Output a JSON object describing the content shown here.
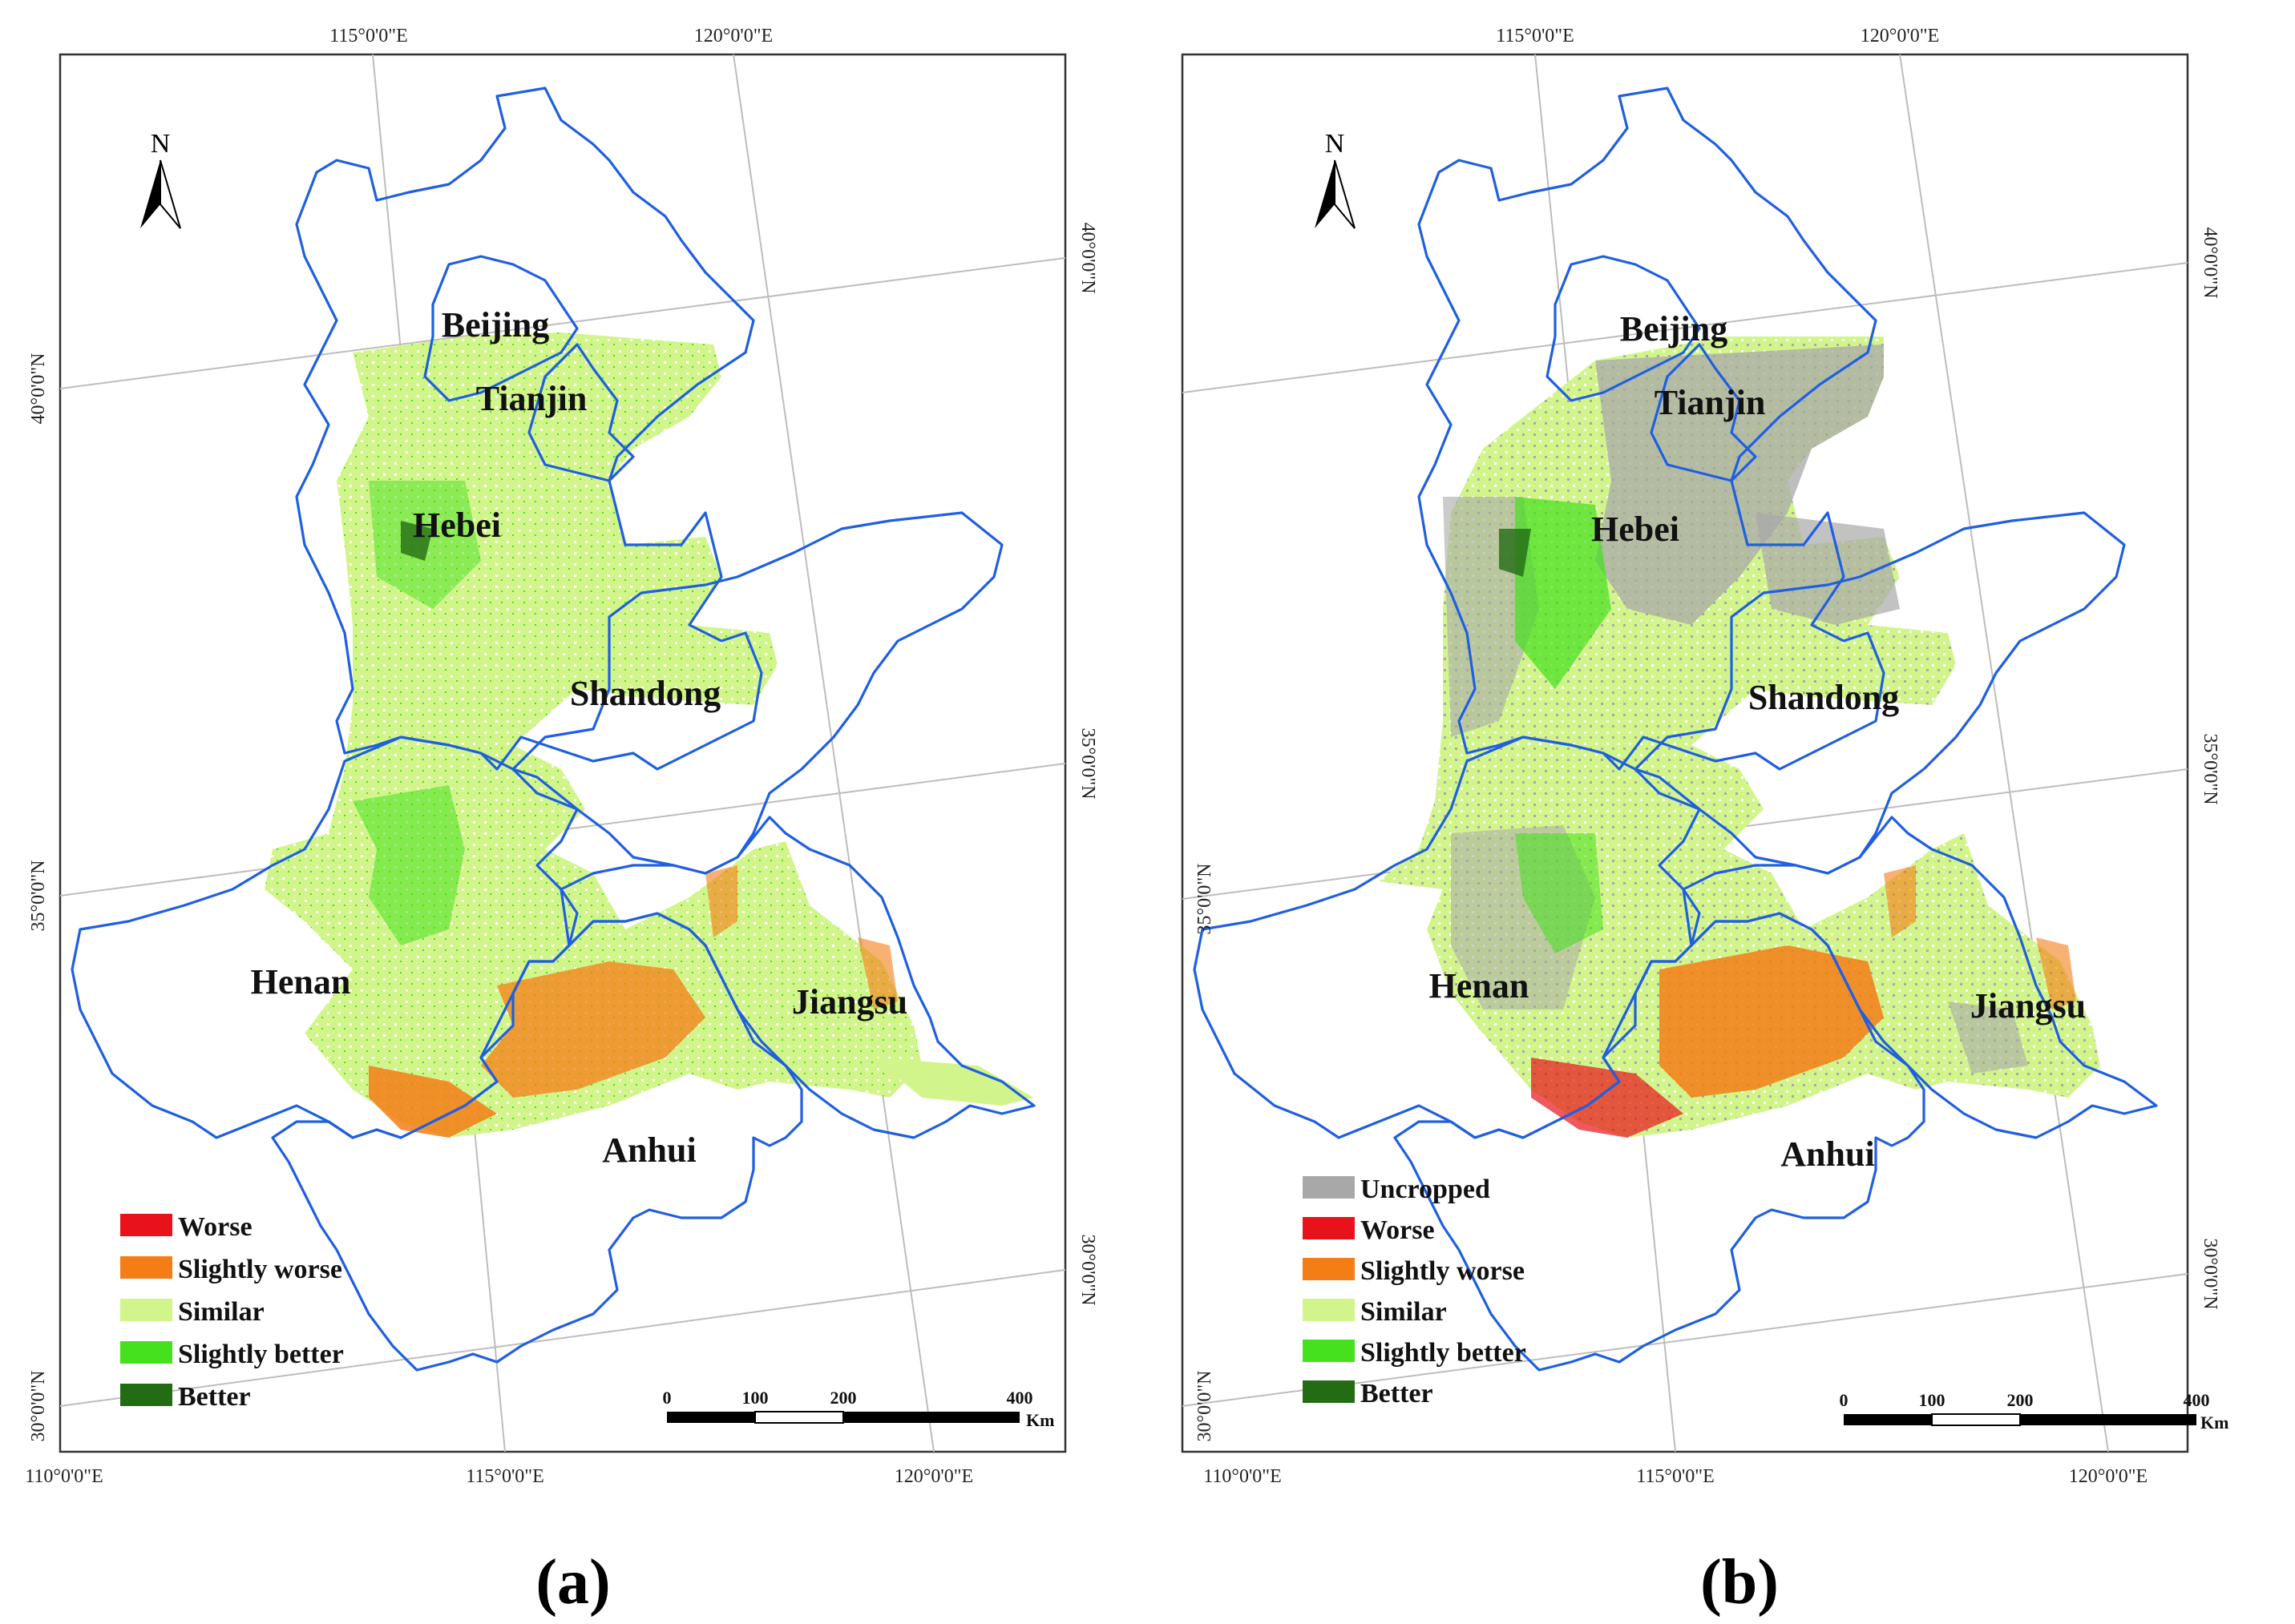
{
  "figure": {
    "panels": [
      {
        "id": "a",
        "caption_letter": "a",
        "legend": [
          {
            "label": "Worse",
            "color": "#e8131a"
          },
          {
            "label": "Slightly worse",
            "color": "#f57d16"
          },
          {
            "label": "Similar",
            "color": "#d2f58b"
          },
          {
            "label": "Slightly better",
            "color": "#45e01e"
          },
          {
            "label": "Better",
            "color": "#236c14"
          }
        ],
        "provinces": [
          "Beijing",
          "Tianjin",
          "Hebei",
          "Shandong",
          "Henan",
          "Jiangsu",
          "Anhui"
        ]
      },
      {
        "id": "b",
        "caption_letter": "b",
        "legend": [
          {
            "label": "Uncropped",
            "color": "#a8a8a8"
          },
          {
            "label": "Worse",
            "color": "#e8131a"
          },
          {
            "label": "Slightly worse",
            "color": "#f57d16"
          },
          {
            "label": "Similar",
            "color": "#d2f58b"
          },
          {
            "label": "Slightly better",
            "color": "#45e01e"
          },
          {
            "label": "Better",
            "color": "#236c14"
          }
        ],
        "provinces": [
          "Beijing",
          "Tianjin",
          "Hebei",
          "Shandong",
          "Henan",
          "Jiangsu",
          "Anhui"
        ]
      }
    ],
    "graticule": {
      "top_labels": [
        "115°0'0\"E",
        "120°0'0\"E"
      ],
      "bottom_labels": [
        "110°0'0\"E",
        "115°0'0\"E",
        "120°0'0\"E"
      ],
      "left_labels": [
        "40°0'0\"N",
        "35°0'0\"N",
        "30°0'0\"N"
      ],
      "right_labels": [
        "40°0'0\"N",
        "35°0'0\"N",
        "30°0'0\"N"
      ]
    },
    "north_arrow": {
      "label": "N"
    },
    "scale_bar": {
      "ticks": [
        "0",
        "100",
        "200",
        "400"
      ],
      "unit": "Km"
    },
    "colors": {
      "boundary": "#1f5fe0",
      "frame": "#333333",
      "graticule": "#bdbdbd"
    }
  }
}
